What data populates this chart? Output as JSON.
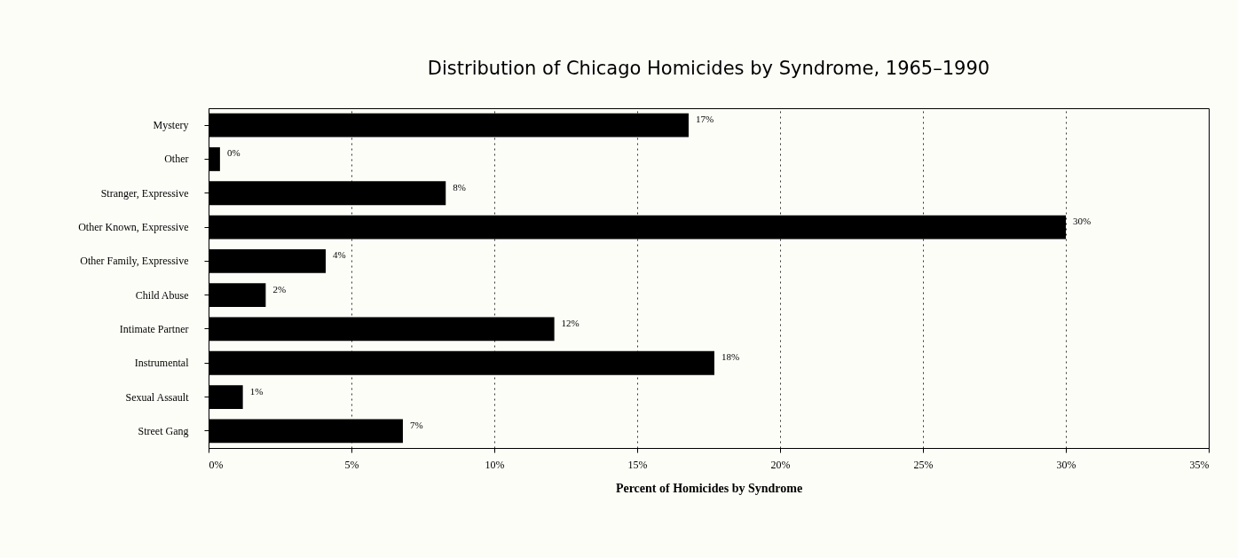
{
  "chart_data": {
    "type": "bar",
    "orientation": "horizontal",
    "title": "Distribution of Chicago Homicides by Syndrome, 1965–1990",
    "xlabel": "Percent of Homicides by Syndrome",
    "categories": [
      "Mystery",
      "Other",
      "Stranger, Expressive",
      "Other Known, Expressive",
      "Other Family, Expressive",
      "Child Abuse",
      "Intimate Partner",
      "Instrumental",
      "Sexual Assault",
      "Street Gang"
    ],
    "values": [
      16.8,
      0.4,
      8.3,
      30.0,
      4.1,
      2.0,
      12.1,
      17.7,
      1.2,
      6.8
    ],
    "value_labels": [
      "17%",
      "0%",
      "8%",
      "30%",
      "4%",
      "2%",
      "12%",
      "18%",
      "1%",
      "7%"
    ],
    "color": "#000000",
    "xlim": [
      0,
      35
    ],
    "xticks": [
      {
        "value": 0,
        "label": "0%"
      },
      {
        "value": 5,
        "label": "5%"
      },
      {
        "value": 10,
        "label": "10%"
      },
      {
        "value": 15,
        "label": "15%"
      },
      {
        "value": 20,
        "label": "20%"
      },
      {
        "value": 25,
        "label": "25%"
      },
      {
        "value": 30,
        "label": "30%"
      },
      {
        "value": 35,
        "label": "35%"
      }
    ],
    "grid": "x"
  }
}
